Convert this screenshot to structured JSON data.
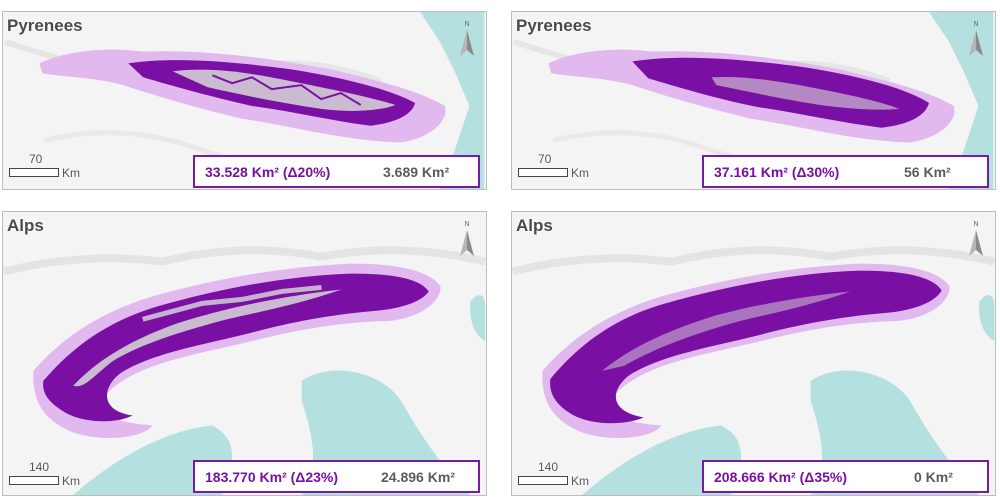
{
  "panels": [
    {
      "title": "Pyrenees",
      "scale": "70",
      "unit": "Km",
      "area": "33.528 Km² (Δ20%)",
      "loss": "3.689 Km²"
    },
    {
      "title": "Pyrenees",
      "scale": "70",
      "unit": "Km",
      "area": "37.161 Km² (Δ30%)",
      "loss": "56 Km²"
    },
    {
      "title": "Alps",
      "scale": "140",
      "unit": "Km",
      "area": "183.770 Km² (Δ23%)",
      "loss": "24.896 Km²"
    },
    {
      "title": "Alps",
      "scale": "140",
      "unit": "Km",
      "area": "208.666 Km² (Δ35%)",
      "loss": "0 Km²"
    }
  ],
  "north_label": "N",
  "colors": {
    "buffer": "#e2b9ef",
    "range": "#7a0fa3",
    "peaks": "#d9d9d9",
    "sea": "#b4e1df",
    "land": "#f4f4f4",
    "box_border": "#7a1aa2"
  }
}
